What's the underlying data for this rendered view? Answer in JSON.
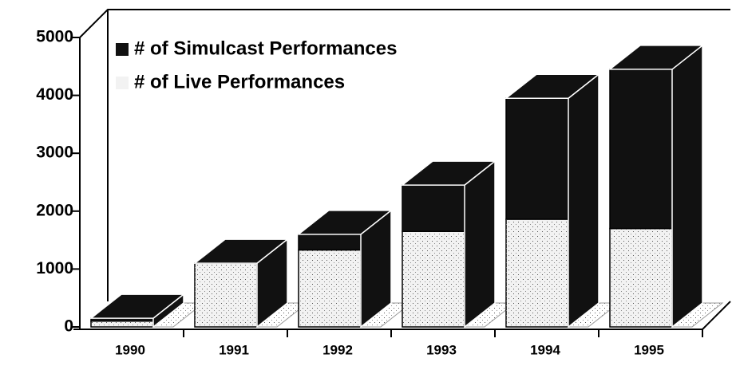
{
  "chart_data": {
    "type": "bar3d_stacked",
    "categories": [
      "1990",
      "1991",
      "1992",
      "1993",
      "1994",
      "1995"
    ],
    "series": [
      {
        "name": "# of Live Performances",
        "color": "#f2f2f2",
        "values": [
          100,
          1100,
          1330,
          1650,
          1860,
          1700
        ]
      },
      {
        "name": "# of Simulcast Performances",
        "color": "#111111",
        "values": [
          50,
          0,
          270,
          800,
          2090,
          2750
        ]
      }
    ],
    "ylim": [
      0,
      5000
    ],
    "yticks": [
      0,
      1000,
      2000,
      3000,
      4000,
      5000
    ]
  }
}
